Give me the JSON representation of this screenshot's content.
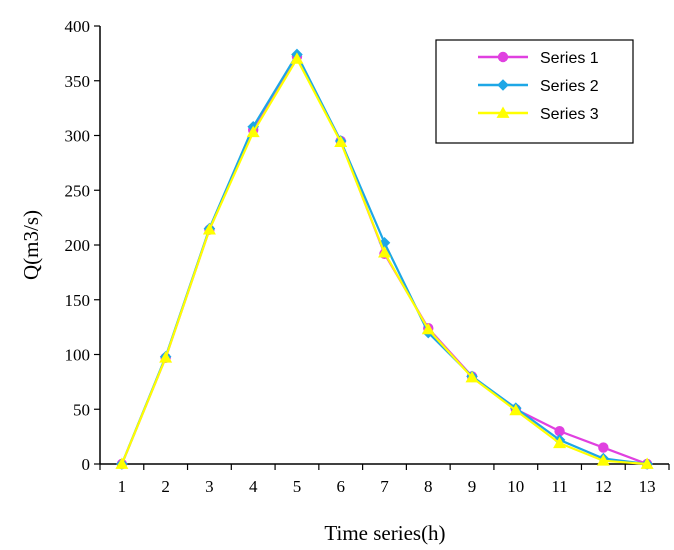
{
  "chart_data": {
    "type": "line",
    "xlabel": "Time series(h)",
    "ylabel": "Q(m3/s)",
    "x": [
      1,
      2,
      3,
      4,
      5,
      6,
      7,
      8,
      9,
      10,
      11,
      12,
      13
    ],
    "xlim": [
      0.5,
      13.5
    ],
    "ylim": [
      0,
      400
    ],
    "yticks": [
      0,
      50,
      100,
      150,
      200,
      250,
      300,
      350,
      400
    ],
    "grid": false,
    "legend_position": "top-right",
    "series": [
      {
        "name": "Series 1",
        "color": "#e040e0",
        "marker": "circle",
        "values": [
          0,
          97,
          214,
          305,
          372,
          295,
          192,
          124,
          80,
          50,
          30,
          15,
          0
        ]
      },
      {
        "name": "Series 2",
        "color": "#1ea7e6",
        "marker": "diamond",
        "values": [
          0,
          98,
          215,
          308,
          374,
          295,
          202,
          120,
          80,
          51,
          22,
          5,
          0
        ]
      },
      {
        "name": "Series 3",
        "color": "#ffff00",
        "marker": "triangle",
        "values": [
          0,
          97,
          214,
          303,
          370,
          294,
          193,
          123,
          79,
          49,
          19,
          3,
          0
        ]
      }
    ]
  }
}
